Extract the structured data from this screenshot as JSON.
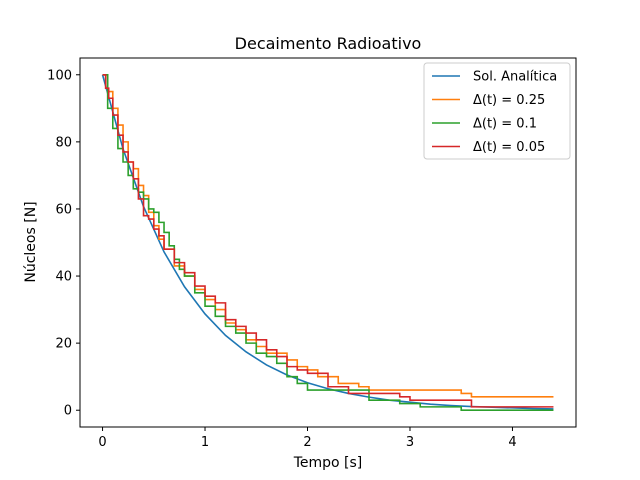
{
  "chart_data": {
    "type": "line",
    "title": "Decaimento Radioativo",
    "xlabel": "Tempo  [s]",
    "ylabel": "Núcleos [N]",
    "xlim": [
      -0.22,
      4.62
    ],
    "ylim": [
      -5,
      105
    ],
    "xticks": [
      0,
      1,
      2,
      3,
      4
    ],
    "yticks": [
      0,
      20,
      40,
      60,
      80,
      100
    ],
    "grid": false,
    "legend_position": "top-right",
    "series": [
      {
        "name": "Sol. Analítica",
        "color": "#1f77b4",
        "step": false,
        "x": [
          0,
          0.2,
          0.4,
          0.6,
          0.8,
          1.0,
          1.2,
          1.4,
          1.6,
          1.8,
          2.0,
          2.2,
          2.4,
          2.6,
          2.8,
          3.0,
          3.2,
          3.4,
          3.6,
          3.8,
          4.0,
          4.2,
          4.4
        ],
        "y": [
          100,
          77.9,
          60.7,
          47.2,
          36.8,
          28.7,
          22.3,
          17.4,
          13.5,
          10.5,
          8.2,
          6.4,
          5.0,
          3.9,
          3.0,
          2.4,
          1.8,
          1.4,
          1.1,
          0.9,
          0.7,
          0.5,
          0.4
        ]
      },
      {
        "name": "Δ(t) = 0.25",
        "legend_text": "Δ(t) = 0.25",
        "color": "#ff7f0e",
        "step": true,
        "x": [
          0,
          0.05,
          0.1,
          0.15,
          0.2,
          0.25,
          0.3,
          0.35,
          0.4,
          0.45,
          0.5,
          0.55,
          0.6,
          0.7,
          0.8,
          0.9,
          1.0,
          1.1,
          1.2,
          1.3,
          1.4,
          1.5,
          1.6,
          1.8,
          1.9,
          2.0,
          2.1,
          2.3,
          2.5,
          2.6,
          2.7,
          2.9,
          3.5,
          3.6,
          3.7,
          3.75,
          4.4
        ],
        "y": [
          100,
          95,
          90,
          85,
          80,
          74,
          72,
          67,
          64,
          59,
          55,
          51,
          48,
          43,
          40,
          36,
          33,
          30,
          26,
          24,
          21,
          19,
          17,
          15,
          13,
          12,
          10,
          8,
          7,
          6,
          6,
          6,
          5,
          4,
          4,
          4,
          4
        ]
      },
      {
        "name": "Δ(t) = 0.1",
        "legend_text": "Δ(t) = 0.1",
        "color": "#2ca02c",
        "step": true,
        "x": [
          0,
          0.05,
          0.1,
          0.15,
          0.2,
          0.25,
          0.3,
          0.35,
          0.4,
          0.45,
          0.5,
          0.55,
          0.6,
          0.65,
          0.7,
          0.75,
          0.8,
          0.9,
          1.0,
          1.1,
          1.2,
          1.3,
          1.4,
          1.5,
          1.6,
          1.7,
          1.8,
          1.9,
          2.0,
          2.3,
          2.6,
          2.7,
          2.9,
          3.1,
          3.2,
          3.5,
          4.4
        ],
        "y": [
          100,
          90,
          84,
          78,
          74,
          70,
          66,
          65,
          63,
          60,
          59,
          56,
          53,
          49,
          45,
          42,
          40,
          35,
          31,
          28,
          25,
          23,
          20,
          17,
          16,
          14,
          10,
          8,
          6,
          6,
          3,
          3,
          2,
          1,
          1,
          0,
          0
        ]
      },
      {
        "name": "Δ(t) = 0.05",
        "legend_text": "Δ(t) = 0.05",
        "color": "#d62728",
        "step": true,
        "x": [
          0,
          0.03,
          0.06,
          0.1,
          0.15,
          0.2,
          0.25,
          0.3,
          0.35,
          0.4,
          0.45,
          0.5,
          0.55,
          0.6,
          0.7,
          0.8,
          0.9,
          1.0,
          1.1,
          1.2,
          1.3,
          1.4,
          1.5,
          1.6,
          1.7,
          1.8,
          1.9,
          2.0,
          2.2,
          2.4,
          2.7,
          2.9,
          3.0,
          3.2,
          3.6,
          4.4
        ],
        "y": [
          100,
          96,
          93,
          88,
          82,
          77,
          74,
          69,
          63,
          58,
          57,
          54,
          52,
          48,
          44,
          41,
          37,
          34,
          32,
          27,
          25,
          23,
          21,
          18,
          16,
          13,
          12,
          11,
          7,
          5,
          5,
          4,
          3,
          3,
          1,
          1
        ]
      }
    ]
  }
}
